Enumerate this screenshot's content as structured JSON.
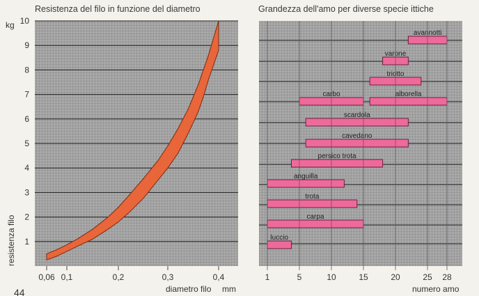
{
  "page_number": "44",
  "colors": {
    "plot_background": "#9a9a9a",
    "band_fill": "#e8663a",
    "bar_fill": "#ee6a9a",
    "grid": "#1f1f1f"
  },
  "chart_data": [
    {
      "type": "area",
      "title": "Resistenza del filo in funzione del diametro",
      "xlabel": "diametro filo",
      "x_unit": "mm",
      "ylabel": "resistenza filo",
      "y_unit": "kg",
      "xlim": [
        0.06,
        0.4
      ],
      "ylim": [
        0,
        10
      ],
      "x_ticks": [
        "0,06",
        "0,1",
        "0,2",
        "0,3",
        "0,4"
      ],
      "x_tick_values": [
        0.06,
        0.1,
        0.2,
        0.3,
        0.4
      ],
      "y_ticks": [
        "1",
        "2",
        "3",
        "4",
        "5",
        "6",
        "7",
        "8",
        "9",
        "10"
      ],
      "grid": "horizontal",
      "band": {
        "upper": [
          [
            0.06,
            0.5
          ],
          [
            0.08,
            0.67
          ],
          [
            0.1,
            0.87
          ],
          [
            0.12,
            1.1
          ],
          [
            0.15,
            1.5
          ],
          [
            0.18,
            2.0
          ],
          [
            0.2,
            2.4
          ],
          [
            0.22,
            2.85
          ],
          [
            0.25,
            3.55
          ],
          [
            0.28,
            4.3
          ],
          [
            0.3,
            4.9
          ],
          [
            0.32,
            5.6
          ],
          [
            0.34,
            6.4
          ],
          [
            0.36,
            7.4
          ],
          [
            0.38,
            8.6
          ],
          [
            0.39,
            9.3
          ],
          [
            0.4,
            10.0
          ]
        ],
        "lower": [
          [
            0.06,
            0.25
          ],
          [
            0.08,
            0.4
          ],
          [
            0.1,
            0.6
          ],
          [
            0.12,
            0.8
          ],
          [
            0.15,
            1.1
          ],
          [
            0.18,
            1.5
          ],
          [
            0.2,
            1.8
          ],
          [
            0.22,
            2.15
          ],
          [
            0.25,
            2.75
          ],
          [
            0.28,
            3.5
          ],
          [
            0.3,
            4.0
          ],
          [
            0.32,
            4.6
          ],
          [
            0.34,
            5.4
          ],
          [
            0.36,
            6.3
          ],
          [
            0.37,
            6.9
          ],
          [
            0.38,
            7.6
          ],
          [
            0.4,
            8.8
          ]
        ]
      }
    },
    {
      "type": "bar",
      "orientation": "horizontal-range",
      "title": "Grandezza dell'amo per diverse specie ittiche",
      "xlabel": "numero amo",
      "x_ticks": [
        "1",
        "5",
        "10",
        "15",
        "20",
        "25",
        "28"
      ],
      "x_tick_values": [
        1,
        5,
        10,
        15,
        20,
        25,
        28
      ],
      "grid": "horizontal",
      "ranges": [
        {
          "label": "avannotti",
          "start": 22,
          "end": 28
        },
        {
          "label": "varone",
          "start": 18,
          "end": 22
        },
        {
          "label": "triotto",
          "start": 16,
          "end": 24
        },
        {
          "label": "carbo",
          "start": 5,
          "end": 15
        },
        {
          "label": "alborella",
          "start": 16,
          "end": 28
        },
        {
          "label": "scardola",
          "start": 6,
          "end": 22
        },
        {
          "label": "cavedano",
          "start": 6,
          "end": 22
        },
        {
          "label": "persico trota",
          "start": 4,
          "end": 18
        },
        {
          "label": "anguilla",
          "start": 1,
          "end": 12
        },
        {
          "label": "trota",
          "start": 1,
          "end": 14
        },
        {
          "label": "carpa",
          "start": 1,
          "end": 15
        },
        {
          "label": "luccio",
          "start": 1,
          "end": 4
        }
      ]
    }
  ]
}
